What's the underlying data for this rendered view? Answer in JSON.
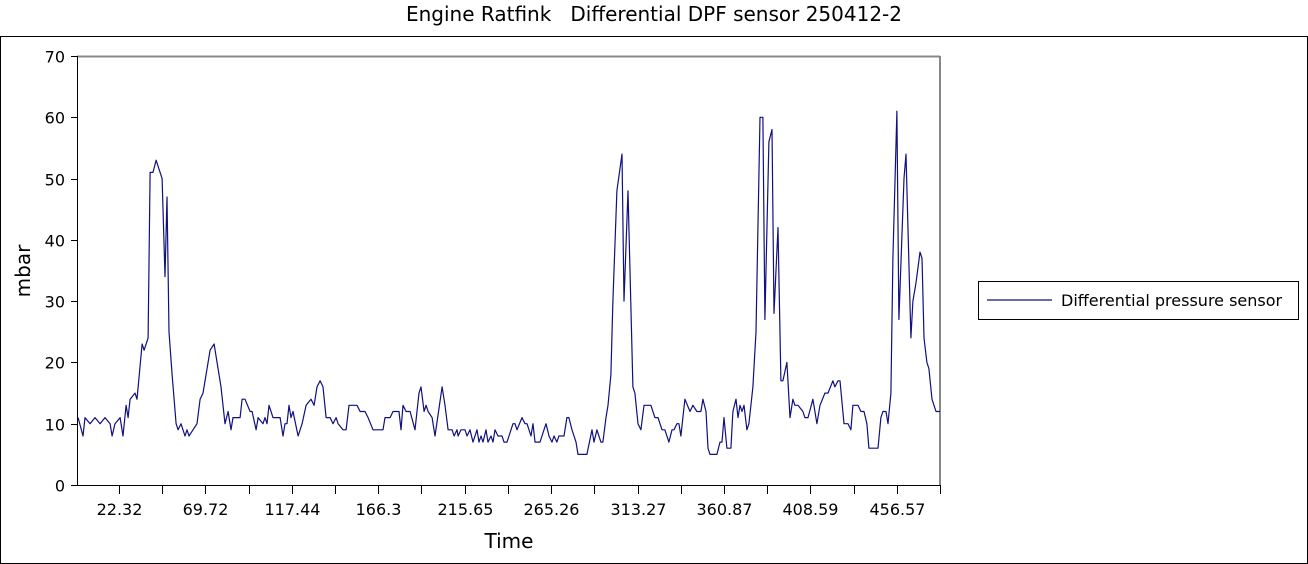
{
  "chart_data": {
    "type": "line",
    "title": "Engine Ratfink   Differential DPF sensor 250412-2",
    "xlabel": "Time",
    "ylabel": "mbar",
    "ylim": [
      0,
      70
    ],
    "xlim": [
      0,
      474.7
    ],
    "yticks": [
      "0",
      "10",
      "20",
      "30",
      "40",
      "50",
      "60",
      "70"
    ],
    "xtick_labels": [
      "22.32",
      "69.72",
      "117.44",
      "166.3",
      "215.65",
      "265.26",
      "313.27",
      "360.87",
      "408.59",
      "456.57"
    ],
    "grid": false,
    "legend": {
      "position": "right",
      "entries": [
        "Differential pressure sensor"
      ]
    },
    "series": [
      {
        "name": "Differential pressure sensor",
        "color": "#101080",
        "points": [
          [
            0.6,
            11
          ],
          [
            3.3,
            8
          ],
          [
            4.4,
            11
          ],
          [
            7.2,
            10
          ],
          [
            9.9,
            11
          ],
          [
            12.7,
            10
          ],
          [
            15.4,
            11
          ],
          [
            18.2,
            10
          ],
          [
            19.3,
            8
          ],
          [
            20.9,
            10
          ],
          [
            23.7,
            11
          ],
          [
            25.3,
            8
          ],
          [
            27.0,
            13
          ],
          [
            28.1,
            11
          ],
          [
            29.2,
            14
          ],
          [
            31.9,
            15
          ],
          [
            33.0,
            14
          ],
          [
            35.8,
            23
          ],
          [
            36.9,
            22
          ],
          [
            39.1,
            24
          ],
          [
            40.2,
            51
          ],
          [
            41.8,
            51
          ],
          [
            43.5,
            53
          ],
          [
            46.8,
            50
          ],
          [
            48.4,
            34
          ],
          [
            49.5,
            47
          ],
          [
            50.6,
            25
          ],
          [
            52.3,
            18
          ],
          [
            54.5,
            10
          ],
          [
            55.6,
            9
          ],
          [
            57.2,
            10
          ],
          [
            59.4,
            8
          ],
          [
            60.5,
            9
          ],
          [
            61.6,
            8
          ],
          [
            63.8,
            9
          ],
          [
            66.0,
            10
          ],
          [
            67.7,
            14
          ],
          [
            69.3,
            15
          ],
          [
            73.2,
            22
          ],
          [
            75.4,
            23
          ],
          [
            79.2,
            16
          ],
          [
            81.4,
            10
          ],
          [
            83.1,
            12
          ],
          [
            84.7,
            9
          ],
          [
            85.8,
            11
          ],
          [
            89.7,
            11
          ],
          [
            90.8,
            14
          ],
          [
            92.4,
            14
          ],
          [
            95.2,
            12
          ],
          [
            96.3,
            12
          ],
          [
            98.5,
            9
          ],
          [
            99.6,
            11
          ],
          [
            102.3,
            10
          ],
          [
            103.4,
            11
          ],
          [
            104.5,
            10
          ],
          [
            105.6,
            13
          ],
          [
            107.8,
            11
          ],
          [
            111.7,
            11
          ],
          [
            113.3,
            8
          ],
          [
            114.4,
            10
          ],
          [
            115.5,
            10
          ],
          [
            116.6,
            13
          ],
          [
            117.7,
            11
          ],
          [
            118.8,
            12
          ],
          [
            121.6,
            8
          ],
          [
            123.8,
            10
          ],
          [
            126.0,
            13
          ],
          [
            128.7,
            14
          ],
          [
            130.4,
            13
          ],
          [
            132.0,
            16
          ],
          [
            133.7,
            17
          ],
          [
            135.3,
            16
          ],
          [
            137.0,
            11
          ],
          [
            139.2,
            11
          ],
          [
            140.8,
            10
          ],
          [
            142.5,
            11
          ],
          [
            143.6,
            10
          ],
          [
            146.3,
            9
          ],
          [
            148.0,
            9
          ],
          [
            149.6,
            13
          ],
          [
            154.0,
            13
          ],
          [
            155.7,
            12
          ],
          [
            158.4,
            12
          ],
          [
            160.1,
            11
          ],
          [
            162.8,
            9
          ],
          [
            168.3,
            9
          ],
          [
            169.4,
            11
          ],
          [
            172.2,
            11
          ],
          [
            173.8,
            12
          ],
          [
            177.1,
            12
          ],
          [
            178.2,
            9
          ],
          [
            179.3,
            13
          ],
          [
            181.0,
            12
          ],
          [
            183.2,
            12
          ],
          [
            185.9,
            9
          ],
          [
            188.1,
            15
          ],
          [
            189.2,
            16
          ],
          [
            190.9,
            12
          ],
          [
            192.0,
            13
          ],
          [
            193.1,
            12
          ],
          [
            195.3,
            11
          ],
          [
            196.9,
            8
          ],
          [
            200.8,
            16
          ],
          [
            202.4,
            13
          ],
          [
            204.1,
            9
          ],
          [
            206.3,
            9
          ],
          [
            207.4,
            8
          ],
          [
            209.0,
            9
          ],
          [
            209.6,
            8
          ],
          [
            211.2,
            9
          ],
          [
            213.4,
            9
          ],
          [
            214.5,
            8
          ],
          [
            216.2,
            9
          ],
          [
            217.8,
            7
          ],
          [
            220.0,
            9
          ],
          [
            221.1,
            7
          ],
          [
            222.2,
            8
          ],
          [
            223.3,
            7
          ],
          [
            225.0,
            9
          ],
          [
            226.1,
            7
          ],
          [
            227.7,
            8
          ],
          [
            228.8,
            7
          ],
          [
            229.9,
            9
          ],
          [
            231.6,
            8
          ],
          [
            233.8,
            8
          ],
          [
            234.9,
            7
          ],
          [
            236.5,
            7
          ],
          [
            237.6,
            8
          ],
          [
            239.8,
            10
          ],
          [
            240.9,
            10
          ],
          [
            242.0,
            9
          ],
          [
            244.8,
            11
          ],
          [
            246.4,
            10
          ],
          [
            247.5,
            10
          ],
          [
            249.7,
            8
          ],
          [
            250.8,
            10
          ],
          [
            251.9,
            7
          ],
          [
            254.7,
            7
          ],
          [
            258.0,
            10
          ],
          [
            259.6,
            8
          ],
          [
            261.3,
            7
          ],
          [
            262.4,
            8
          ],
          [
            264.0,
            7
          ],
          [
            265.1,
            8
          ],
          [
            267.9,
            8
          ],
          [
            269.5,
            11
          ],
          [
            270.6,
            11
          ],
          [
            272.3,
            9
          ],
          [
            274.5,
            7
          ],
          [
            275.6,
            5
          ],
          [
            280.5,
            5
          ],
          [
            283.3,
            9
          ],
          [
            284.4,
            7
          ],
          [
            286.0,
            9
          ],
          [
            288.2,
            7
          ],
          [
            289.3,
            7
          ],
          [
            291.0,
            11
          ],
          [
            292.1,
            13
          ],
          [
            293.7,
            18
          ],
          [
            294.8,
            30
          ],
          [
            297.0,
            48
          ],
          [
            299.8,
            54
          ],
          [
            300.9,
            30
          ],
          [
            303.1,
            48
          ],
          [
            305.8,
            16
          ],
          [
            306.9,
            15
          ],
          [
            308.6,
            10
          ],
          [
            310.2,
            9
          ],
          [
            311.9,
            13
          ],
          [
            315.7,
            13
          ],
          [
            317.9,
            11
          ],
          [
            319.6,
            11
          ],
          [
            321.8,
            9
          ],
          [
            323.4,
            9
          ],
          [
            325.6,
            7
          ],
          [
            327.3,
            9
          ],
          [
            328.4,
            9
          ],
          [
            330.0,
            10
          ],
          [
            331.1,
            10
          ],
          [
            332.2,
            8
          ],
          [
            334.4,
            14
          ],
          [
            337.2,
            12
          ],
          [
            338.8,
            13
          ],
          [
            341.0,
            12
          ],
          [
            343.2,
            12
          ],
          [
            344.3,
            14
          ],
          [
            346.0,
            12
          ],
          [
            347.1,
            6
          ],
          [
            348.2,
            5
          ],
          [
            352.0,
            5
          ],
          [
            353.7,
            7
          ],
          [
            354.8,
            7
          ],
          [
            355.9,
            11
          ],
          [
            357.5,
            6
          ],
          [
            359.7,
            6
          ],
          [
            360.8,
            12
          ],
          [
            362.5,
            14
          ],
          [
            363.6,
            11
          ],
          [
            364.7,
            13
          ],
          [
            365.8,
            12
          ],
          [
            366.9,
            13
          ],
          [
            368.5,
            9
          ],
          [
            369.6,
            10
          ],
          [
            371.8,
            16
          ],
          [
            373.5,
            25
          ],
          [
            375.7,
            60
          ],
          [
            377.3,
            60
          ],
          [
            378.4,
            27
          ],
          [
            380.6,
            56
          ],
          [
            382.3,
            58
          ],
          [
            383.4,
            28
          ],
          [
            385.6,
            42
          ],
          [
            387.2,
            17
          ],
          [
            388.3,
            17
          ],
          [
            390.5,
            20
          ],
          [
            392.2,
            11
          ],
          [
            393.8,
            14
          ],
          [
            394.9,
            13
          ],
          [
            396.6,
            13
          ],
          [
            399.3,
            12
          ],
          [
            400.4,
            11
          ],
          [
            402.1,
            11
          ],
          [
            404.8,
            14
          ],
          [
            407.0,
            10
          ],
          [
            408.7,
            13
          ],
          [
            411.4,
            15
          ],
          [
            413.1,
            15
          ],
          [
            415.8,
            17
          ],
          [
            416.9,
            16
          ],
          [
            418.6,
            17
          ],
          [
            419.7,
            17
          ],
          [
            421.9,
            10
          ],
          [
            424.1,
            10
          ],
          [
            425.7,
            9
          ],
          [
            426.8,
            13
          ],
          [
            429.6,
            13
          ],
          [
            431.2,
            12
          ],
          [
            432.9,
            12
          ],
          [
            434.5,
            10
          ],
          [
            435.6,
            6
          ],
          [
            440.6,
            6
          ],
          [
            442.2,
            11
          ],
          [
            443.3,
            12
          ],
          [
            445.0,
            12
          ],
          [
            446.1,
            10
          ],
          [
            447.7,
            15
          ],
          [
            448.8,
            37
          ],
          [
            451.0,
            61
          ],
          [
            452.1,
            27
          ],
          [
            454.9,
            50
          ],
          [
            456.0,
            54
          ],
          [
            458.7,
            24
          ],
          [
            459.8,
            30
          ],
          [
            461.5,
            33
          ],
          [
            463.7,
            38
          ],
          [
            464.8,
            37
          ],
          [
            465.9,
            24
          ],
          [
            467.5,
            20
          ],
          [
            468.6,
            19
          ],
          [
            470.3,
            14
          ],
          [
            472.5,
            12
          ],
          [
            474.7,
            12
          ]
        ]
      }
    ]
  }
}
